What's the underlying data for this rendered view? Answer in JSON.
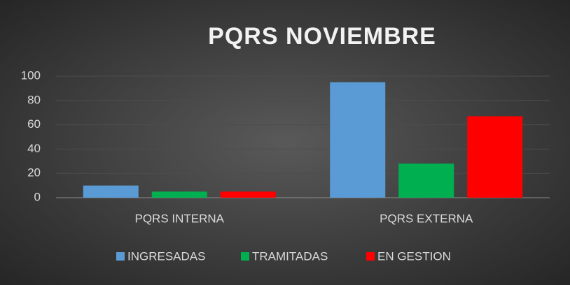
{
  "chart_data": {
    "type": "bar",
    "title": "PQRS NOVIEMBRE",
    "categories": [
      "PQRS INTERNA",
      "PQRS EXTERNA"
    ],
    "series": [
      {
        "name": "INGRESADAS",
        "color": "#5b9bd5",
        "values": [
          10,
          95
        ]
      },
      {
        "name": "TRAMITADAS",
        "color": "#00b050",
        "values": [
          5,
          28
        ]
      },
      {
        "name": "EN GESTION",
        "color": "#ff0000",
        "values": [
          5,
          67
        ]
      }
    ],
    "ylim": [
      0,
      100
    ],
    "yticks": [
      0,
      20,
      40,
      60,
      80,
      100
    ],
    "grid": true,
    "legend": "bottom"
  }
}
